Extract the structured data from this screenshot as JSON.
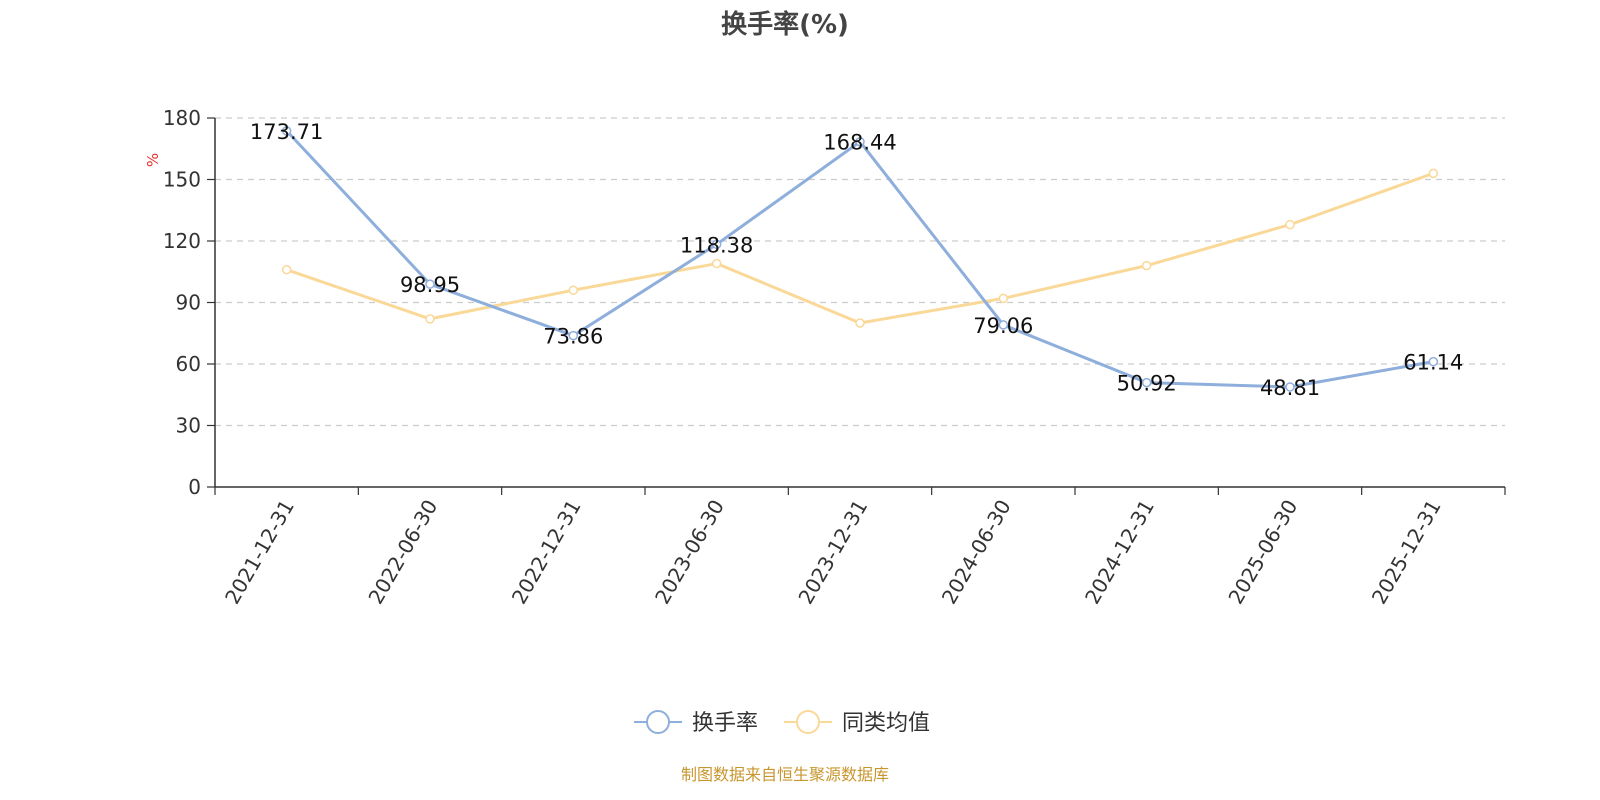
{
  "colors": {
    "turnover": "#8eaedb",
    "peer_avg": "#f9d898",
    "unit": "#e8332d",
    "source": "#c8962e",
    "grid": "#cccccc",
    "axis": "#333333"
  },
  "source_note": "制图数据来自恒生聚源数据库",
  "chart_data": {
    "type": "line",
    "title": "换手率(%)",
    "ylabel": "%",
    "xlabel": "",
    "ylim": [
      0,
      180
    ],
    "yticks": [
      "0",
      "30",
      "60",
      "90",
      "120",
      "150",
      "180"
    ],
    "grid": "horizontal-dashed",
    "legend_position": "bottom-center",
    "categories": [
      "2021-12-31",
      "2022-06-30",
      "2022-12-31",
      "2023-06-30",
      "2023-12-31",
      "2024-06-30",
      "2024-12-31",
      "2025-06-30",
      "2025-12-31"
    ],
    "series": [
      {
        "name": "换手率",
        "values": [
          173.71,
          98.95,
          73.86,
          118.38,
          168.44,
          79.06,
          50.92,
          48.81,
          61.14
        ],
        "labels": [
          "173.71",
          "98.95",
          "73.86",
          "118.38",
          "168.44",
          "79.06",
          "50.92",
          "48.81",
          "61.14"
        ]
      },
      {
        "name": "同类均值",
        "values": [
          106,
          82,
          96,
          109,
          80,
          92,
          108,
          128,
          153
        ]
      }
    ]
  }
}
